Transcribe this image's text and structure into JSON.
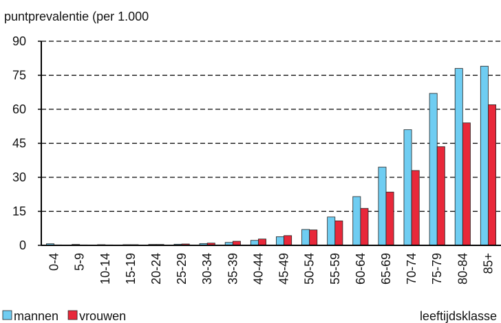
{
  "chart_data": {
    "type": "bar",
    "title": "puntprevalentie (per 1.000",
    "x_label": "leeftijdsklasse",
    "categories": [
      "0-4",
      "5-9",
      "10-14",
      "15-19",
      "20-24",
      "25-29",
      "30-34",
      "35-39",
      "40-44",
      "45-49",
      "50-54",
      "55-59",
      "60-64",
      "65-69",
      "70-74",
      "75-79",
      "80-84",
      "85+"
    ],
    "series": [
      {
        "name": "mannen",
        "color": "#6fcdf2",
        "values": [
          0.7,
          0.4,
          0.3,
          0.3,
          0.4,
          0.5,
          0.8,
          1.3,
          2.2,
          3.8,
          7.0,
          12.5,
          21.5,
          34.5,
          51,
          67,
          78,
          79
        ]
      },
      {
        "name": "vrouwen",
        "color": "#e8283a",
        "values": [
          0.2,
          0.2,
          0.2,
          0.3,
          0.4,
          0.6,
          1.0,
          1.8,
          2.8,
          4.3,
          6.8,
          10.8,
          16.3,
          23.5,
          33,
          43.5,
          54,
          62
        ]
      }
    ],
    "ylim": [
      0,
      90
    ],
    "yticks": [
      0,
      15,
      30,
      45,
      60,
      75,
      90
    ],
    "grid": true
  }
}
